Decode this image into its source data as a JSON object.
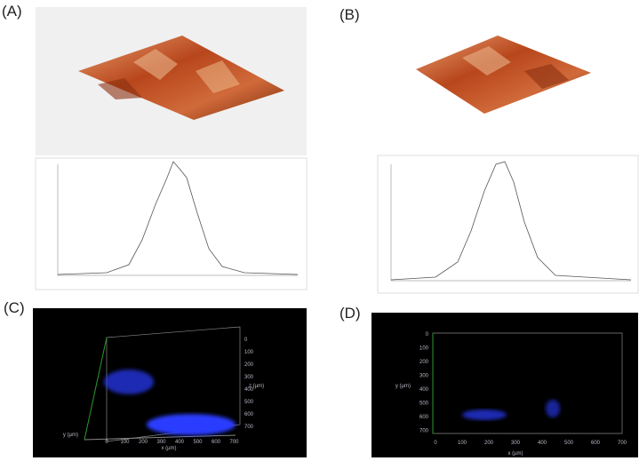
{
  "panels": [
    {
      "label": "(A)"
    },
    {
      "label": "(B)"
    },
    {
      "label": "(C)",
      "x_label": "x (µm)",
      "y_label": "y (µm)",
      "z_label": "z (µm)",
      "x_ticks": [
        "0",
        "100",
        "200",
        "300",
        "400",
        "500",
        "600",
        "700"
      ],
      "z_ticks": [
        "0",
        "100",
        "200",
        "300",
        "400",
        "500",
        "600",
        "700"
      ]
    },
    {
      "label": "(D)",
      "x_label": "x (µm)",
      "y_label": "y (µm)",
      "x_ticks": [
        "0",
        "100",
        "200",
        "300",
        "400",
        "500",
        "600",
        "700"
      ],
      "y_ticks": [
        "0",
        "100",
        "200",
        "300",
        "400",
        "500",
        "600",
        "700"
      ]
    }
  ]
}
